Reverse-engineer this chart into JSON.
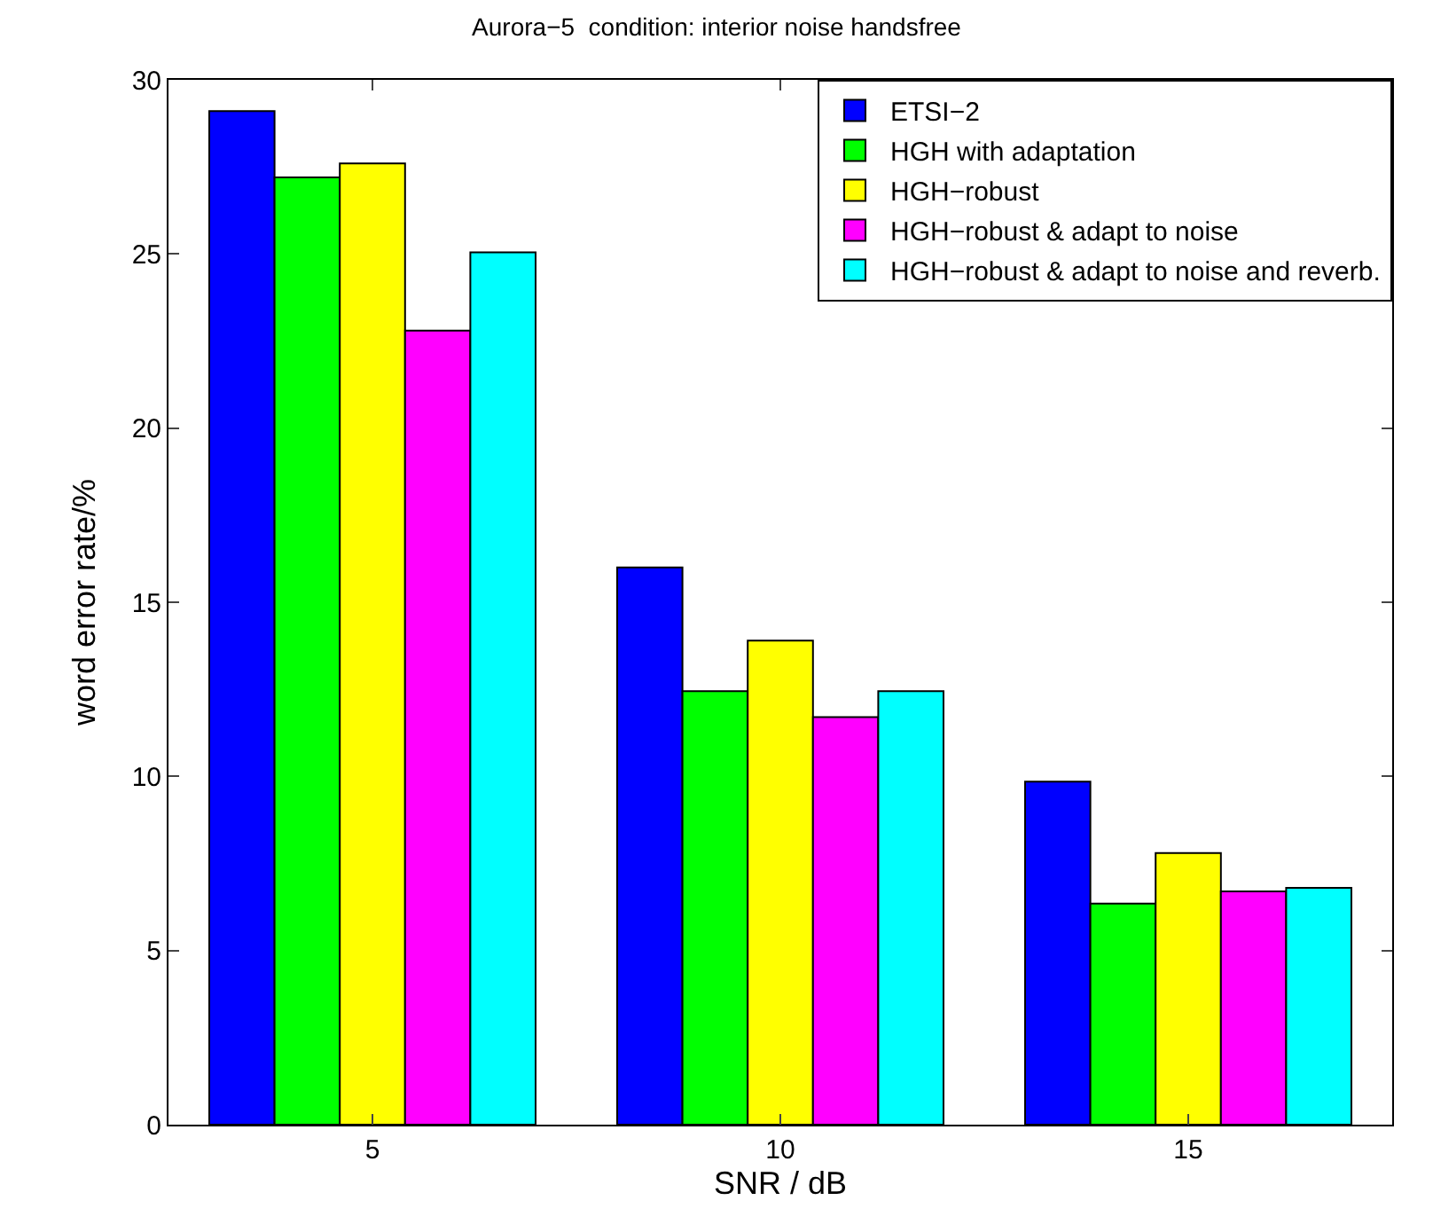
{
  "chart_data": {
    "type": "bar",
    "title": "Aurora−5  condition: interior noise handsfree",
    "xlabel": "SNR / dB",
    "ylabel": "word error rate/%",
    "categories": [
      "5",
      "10",
      "15"
    ],
    "series": [
      {
        "name": "ETSI−2",
        "color": "#0000ff",
        "values": [
          29.1,
          16.0,
          9.85
        ]
      },
      {
        "name": "HGH with adaptation",
        "color": "#00ff00",
        "values": [
          27.2,
          12.45,
          6.35
        ]
      },
      {
        "name": "HGH−robust",
        "color": "#ffff00",
        "values": [
          27.6,
          13.9,
          7.8
        ]
      },
      {
        "name": "HGH−robust & adapt to noise",
        "color": "#ff00ff",
        "values": [
          22.8,
          11.7,
          6.7
        ]
      },
      {
        "name": "HGH−robust & adapt to noise and reverb.",
        "color": "#00ffff",
        "values": [
          25.05,
          12.45,
          6.8
        ]
      }
    ],
    "ylim": [
      0,
      30
    ],
    "yticks": [
      0,
      5,
      10,
      15,
      20,
      25,
      30
    ],
    "legend": "top right"
  }
}
